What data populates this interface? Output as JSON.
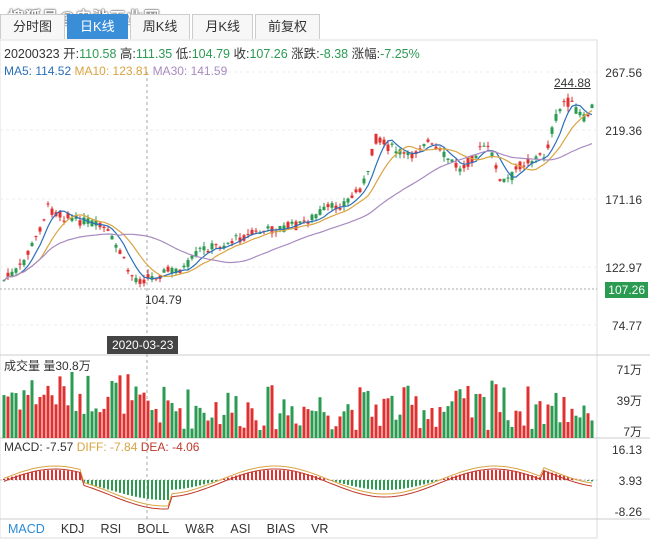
{
  "watermark": "搜狐号@电池工业网",
  "tabs": [
    "分时图",
    "日K线",
    "周K线",
    "月K线",
    "前复权"
  ],
  "active_tab": 1,
  "info": {
    "date": "20200323",
    "open_label": "开:",
    "open": "110.58",
    "high_label": "高:",
    "high": "111.35",
    "low_label": "低:",
    "low": "104.79",
    "close_label": "收:",
    "close": "107.26",
    "change_label": "涨跌:",
    "change": "-8.38",
    "pct_label": "涨幅:",
    "pct": "-7.25%"
  },
  "ma": {
    "ma5": "MA5: 114.52",
    "ma10": "MA10: 123.81",
    "ma30": "MA30: 141.59"
  },
  "price_axis": [
    "267.56",
    "219.36",
    "171.16",
    "122.97",
    "74.77"
  ],
  "current_price": "107.26",
  "high_marker": "244.88",
  "low_marker": "104.79",
  "cursor_date": "2020-03-23",
  "volume": {
    "label": "成交量",
    "amount": "量30.8万",
    "axis": [
      "71万",
      "39万",
      "7万"
    ]
  },
  "macd": {
    "macd": "MACD: -7.57",
    "diff": "DIFF: -7.84",
    "dea": "DEA: -4.06",
    "axis": [
      "16.13",
      "3.93",
      "-8.26"
    ]
  },
  "indicators": [
    "MACD",
    "KDJ",
    "RSI",
    "BOLL",
    "W&R",
    "ASI",
    "BIAS",
    "VR"
  ],
  "active_indicator": 0,
  "colors": {
    "up": "#e03030",
    "down": "#2b9b52",
    "accent": "#3a8ed8"
  }
}
